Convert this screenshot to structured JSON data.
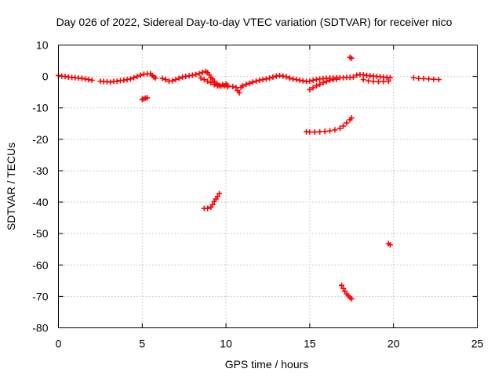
{
  "chart_data": {
    "type": "scatter",
    "title": "Day 026 of 2022, Sidereal Day-to-day VTEC variation (SDTVAR) for receiver nico",
    "xlabel": "GPS time / hours",
    "ylabel": "SDTVAR / TECUs",
    "xlim": [
      0,
      25
    ],
    "ylim": [
      -80,
      10
    ],
    "xticks": [
      "0",
      "5",
      "10",
      "15",
      "20",
      "25"
    ],
    "yticks": [
      "10",
      "0",
      "-10",
      "-20",
      "-30",
      "-40",
      "-50",
      "-60",
      "-70",
      "-80"
    ],
    "grid": true,
    "marker": "plus",
    "color": "#ff0000",
    "series": [
      {
        "name": "main-band",
        "points": [
          [
            0.0,
            0.3
          ],
          [
            0.2,
            0.1
          ],
          [
            0.4,
            0.0
          ],
          [
            0.6,
            -0.2
          ],
          [
            0.8,
            -0.3
          ],
          [
            1.0,
            -0.4
          ],
          [
            1.2,
            -0.5
          ],
          [
            1.4,
            -0.6
          ],
          [
            1.6,
            -0.8
          ],
          [
            1.8,
            -1.0
          ],
          [
            2.0,
            -1.2
          ],
          [
            2.5,
            -1.5
          ],
          [
            2.7,
            -1.6
          ],
          [
            2.9,
            -1.7
          ],
          [
            3.1,
            -1.8
          ],
          [
            3.3,
            -1.6
          ],
          [
            3.5,
            -1.5
          ],
          [
            3.7,
            -1.3
          ],
          [
            3.9,
            -1.2
          ],
          [
            4.1,
            -1.0
          ],
          [
            4.3,
            -0.8
          ],
          [
            4.5,
            -0.4
          ],
          [
            4.7,
            0.0
          ],
          [
            4.9,
            0.4
          ],
          [
            5.1,
            0.7
          ],
          [
            5.3,
            0.8
          ],
          [
            5.5,
            0.9
          ],
          [
            5.6,
            0.3
          ],
          [
            5.7,
            -0.2
          ],
          [
            5.8,
            -0.5
          ],
          [
            6.2,
            -0.6
          ],
          [
            6.4,
            -1.0
          ],
          [
            6.6,
            -1.5
          ],
          [
            6.8,
            -1.4
          ],
          [
            7.0,
            -1.0
          ],
          [
            7.2,
            -0.6
          ],
          [
            7.4,
            -0.2
          ],
          [
            7.6,
            0.0
          ],
          [
            7.8,
            0.2
          ],
          [
            8.0,
            0.4
          ],
          [
            8.2,
            0.6
          ],
          [
            8.4,
            0.9
          ],
          [
            8.6,
            1.3
          ],
          [
            8.8,
            1.6
          ],
          [
            8.9,
            1.2
          ],
          [
            9.0,
            0.5
          ],
          [
            9.1,
            -0.3
          ],
          [
            9.2,
            -0.8
          ],
          [
            9.3,
            -1.5
          ],
          [
            9.4,
            -2.2
          ],
          [
            9.5,
            -2.6
          ],
          [
            9.6,
            -2.8
          ],
          [
            9.8,
            -2.6
          ],
          [
            10.0,
            -2.4
          ],
          [
            10.1,
            -2.8
          ],
          [
            8.5,
            -0.5
          ],
          [
            8.7,
            -1.0
          ],
          [
            8.9,
            -1.5
          ],
          [
            9.1,
            -2.0
          ],
          [
            9.3,
            -2.6
          ],
          [
            9.5,
            -3.0
          ],
          [
            9.7,
            -3.1
          ],
          [
            9.9,
            -3.0
          ],
          [
            10.1,
            -3.3
          ],
          [
            10.4,
            -3.2
          ],
          [
            10.6,
            -3.5
          ],
          [
            10.7,
            -4.5
          ],
          [
            10.8,
            -5.2
          ],
          [
            10.9,
            -3.5
          ],
          [
            11.0,
            -3.0
          ],
          [
            11.2,
            -2.5
          ],
          [
            11.4,
            -2.2
          ],
          [
            11.6,
            -1.8
          ],
          [
            11.8,
            -1.5
          ],
          [
            12.0,
            -1.2
          ],
          [
            12.2,
            -1.0
          ],
          [
            12.4,
            -0.8
          ],
          [
            12.6,
            -0.5
          ],
          [
            12.8,
            -0.2
          ],
          [
            13.0,
            0.1
          ],
          [
            13.2,
            0.3
          ],
          [
            13.4,
            0.1
          ],
          [
            13.6,
            -0.1
          ],
          [
            13.8,
            -0.5
          ],
          [
            14.0,
            -0.8
          ],
          [
            14.2,
            -1.0
          ],
          [
            14.4,
            -1.2
          ],
          [
            14.6,
            -1.4
          ],
          [
            14.8,
            -1.6
          ],
          [
            15.0,
            -1.5
          ],
          [
            15.2,
            -1.2
          ],
          [
            15.4,
            -1.0
          ],
          [
            15.6,
            -0.8
          ],
          [
            15.8,
            -0.7
          ],
          [
            16.0,
            -0.6
          ],
          [
            16.2,
            -0.5
          ],
          [
            16.4,
            -0.5
          ],
          [
            16.6,
            -0.4
          ],
          [
            16.8,
            -0.4
          ],
          [
            17.0,
            -0.4
          ],
          [
            17.2,
            -0.3
          ],
          [
            17.4,
            -0.3
          ],
          [
            15.0,
            -4.2
          ],
          [
            15.2,
            -3.6
          ],
          [
            15.4,
            -3.0
          ],
          [
            15.6,
            -2.5
          ],
          [
            15.8,
            -2.0
          ],
          [
            16.0,
            -1.6
          ],
          [
            16.2,
            -1.2
          ],
          [
            16.4,
            -1.0
          ],
          [
            16.6,
            -0.9
          ],
          [
            17.6,
            -0.2
          ],
          [
            17.8,
            0.4
          ],
          [
            18.0,
            0.6
          ],
          [
            18.2,
            0.5
          ],
          [
            18.4,
            0.3
          ],
          [
            18.6,
            0.2
          ],
          [
            18.8,
            0.1
          ],
          [
            19.0,
            0.0
          ],
          [
            19.2,
            -0.1
          ],
          [
            19.4,
            -0.2
          ],
          [
            19.6,
            -0.3
          ],
          [
            19.8,
            -0.4
          ],
          [
            18.2,
            -1.0
          ],
          [
            18.5,
            -1.4
          ],
          [
            18.8,
            -1.6
          ],
          [
            19.1,
            -1.7
          ],
          [
            19.4,
            -1.6
          ],
          [
            19.7,
            -1.5
          ],
          [
            21.2,
            -0.4
          ],
          [
            21.5,
            -0.6
          ],
          [
            21.8,
            -0.7
          ],
          [
            22.1,
            -0.8
          ],
          [
            22.4,
            -0.9
          ],
          [
            22.7,
            -1.0
          ]
        ]
      },
      {
        "name": "isolated-arcs",
        "points": [
          [
            5.0,
            -7.3
          ],
          [
            5.1,
            -7.1
          ],
          [
            5.2,
            -6.9
          ],
          [
            5.3,
            -6.8
          ],
          [
            17.4,
            6.1
          ],
          [
            17.5,
            5.8
          ],
          [
            14.8,
            -17.6
          ],
          [
            15.0,
            -17.7
          ],
          [
            15.3,
            -17.7
          ],
          [
            15.6,
            -17.6
          ],
          [
            15.9,
            -17.5
          ],
          [
            16.2,
            -17.3
          ],
          [
            16.5,
            -17.0
          ],
          [
            16.8,
            -16.5
          ],
          [
            17.0,
            -15.8
          ],
          [
            17.2,
            -14.8
          ],
          [
            17.4,
            -13.8
          ],
          [
            17.5,
            -13.2
          ],
          [
            8.7,
            -42.0
          ],
          [
            8.9,
            -42.0
          ],
          [
            9.1,
            -41.6
          ],
          [
            9.2,
            -40.8
          ],
          [
            9.3,
            -39.8
          ],
          [
            9.4,
            -39.0
          ],
          [
            9.5,
            -38.2
          ],
          [
            9.6,
            -37.3
          ],
          [
            19.7,
            -53.2
          ],
          [
            19.8,
            -53.6
          ],
          [
            16.9,
            -66.5
          ],
          [
            17.0,
            -67.5
          ],
          [
            17.1,
            -68.4
          ],
          [
            17.2,
            -69.2
          ],
          [
            17.3,
            -69.8
          ],
          [
            17.4,
            -70.3
          ],
          [
            17.5,
            -70.8
          ]
        ]
      }
    ]
  }
}
